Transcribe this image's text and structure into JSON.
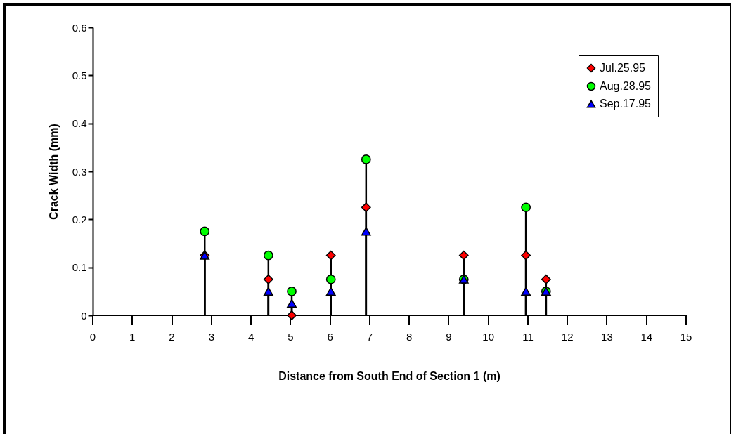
{
  "chart_data": {
    "type": "lollipop",
    "xlabel": "Distance from South End of Section 1 (m)",
    "ylabel": "Crack Width (mm)",
    "x": [
      2.83,
      4.44,
      5.03,
      6.02,
      6.91,
      9.38,
      10.95,
      11.46
    ],
    "series": [
      {
        "name": "Jul.25.95",
        "color": "#ff0000",
        "marker": "diamond",
        "values": [
          0.125,
          0.075,
          0,
          0.125,
          0.225,
          0.125,
          0.125,
          0.075
        ]
      },
      {
        "name": "Aug.28.95",
        "color": "#00ff00",
        "marker": "circle",
        "values": [
          0.175,
          0.125,
          0.05,
          0.075,
          0.325,
          0.075,
          0.225,
          0.05
        ]
      },
      {
        "name": "Sep.17.95",
        "color": "#0000ff",
        "marker": "triangle",
        "values": [
          0.125,
          0.05,
          0.025,
          0.05,
          0.175,
          0.075,
          0.05,
          0.05
        ]
      }
    ],
    "xlim": [
      0,
      15
    ],
    "xticks": [
      0,
      1,
      2,
      3,
      4,
      5,
      6,
      7,
      8,
      9,
      10,
      11,
      12,
      13,
      14,
      15
    ],
    "ylim": [
      0,
      0.6
    ],
    "yticks": [
      0,
      0.1,
      0.2,
      0.3,
      0.4,
      0.5,
      0.6
    ],
    "grid": false,
    "legend": "top right"
  }
}
